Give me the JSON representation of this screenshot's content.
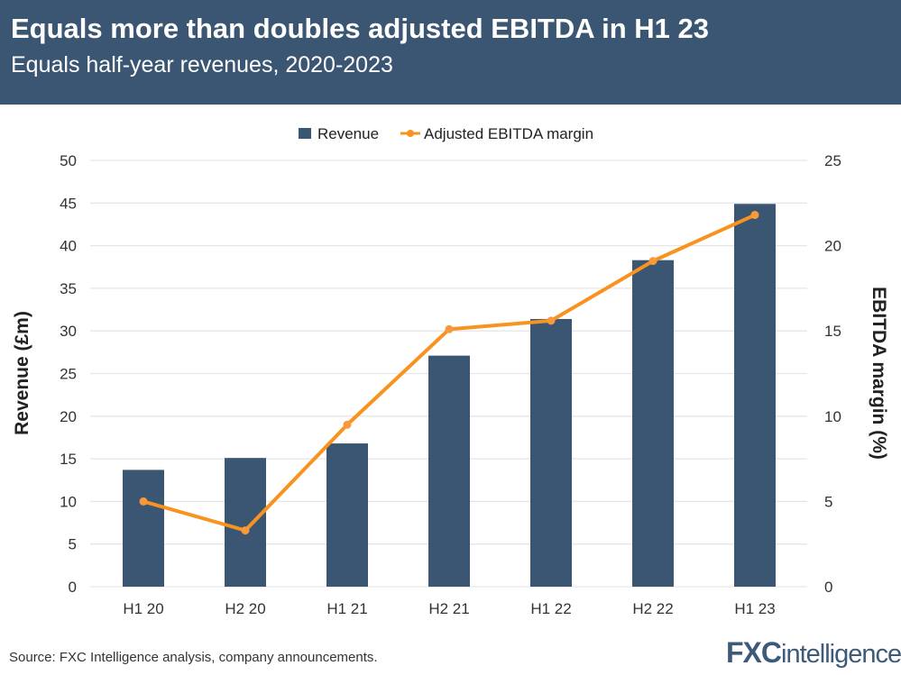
{
  "header": {
    "title": "Equals more than doubles adjusted EBITDA in H1 23",
    "subtitle": "Equals half-year revenues, 2020-2023"
  },
  "chart_data": {
    "type": "bar+line",
    "categories": [
      "H1 20",
      "H2 20",
      "H1 21",
      "H2 21",
      "H1 22",
      "H2 22",
      "H1 23"
    ],
    "series": [
      {
        "name": "Revenue",
        "type": "bar",
        "axis": "left",
        "color": "#3a5673",
        "values": [
          13.7,
          15.1,
          16.8,
          27.1,
          31.4,
          38.3,
          44.9
        ]
      },
      {
        "name": "Adjusted EBITDA margin",
        "type": "line",
        "axis": "right",
        "color": "#f7931e",
        "values": [
          5.0,
          3.3,
          9.5,
          15.1,
          15.6,
          19.1,
          21.8
        ]
      }
    ],
    "ylabel": "Revenue (£m)",
    "ylim": [
      0,
      50
    ],
    "yticks": [
      "0",
      "5",
      "10",
      "15",
      "20",
      "25",
      "30",
      "35",
      "40",
      "45",
      "50"
    ],
    "y2label": "EBITDA margin (%)",
    "y2lim": [
      0,
      25
    ],
    "y2ticks": [
      "0",
      "5",
      "10",
      "15",
      "20",
      "25"
    ],
    "grid": true,
    "legend": "top-center"
  },
  "footer": {
    "source": "Source: FXC Intelligence analysis, company announcements.",
    "logo": "FXCintelligence"
  }
}
